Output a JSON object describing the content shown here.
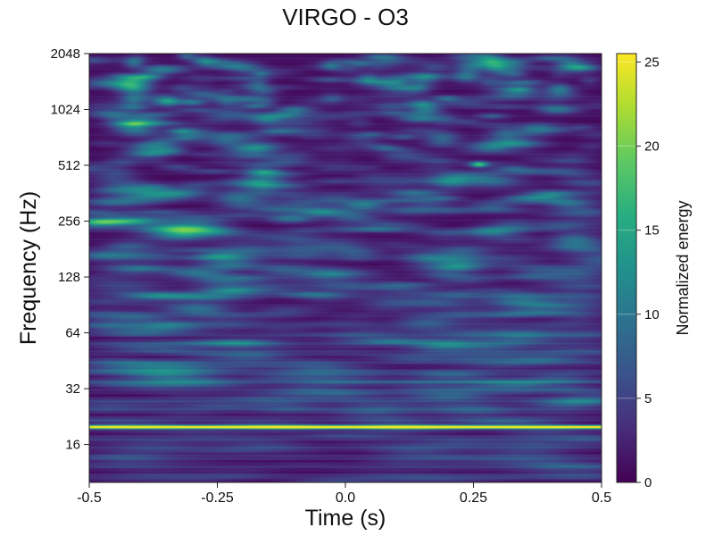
{
  "chart_data": {
    "type": "heatmap",
    "title": "VIRGO - O3",
    "xlabel": "Time (s)",
    "ylabel": "Frequency (Hz)",
    "x_ticks": [
      -0.5,
      -0.25,
      0.0,
      0.25,
      0.5
    ],
    "x_tick_labels": [
      "-0.5",
      "-0.25",
      "0.0",
      "0.25",
      "0.5"
    ],
    "y_scale": "log2",
    "y_ticks": [
      16,
      32,
      64,
      128,
      256,
      512,
      1024,
      2048
    ],
    "y_tick_labels": [
      "16",
      "32",
      "64",
      "128",
      "256",
      "512",
      "1024",
      "2048"
    ],
    "xlim": [
      -0.5,
      0.5
    ],
    "ylim": [
      10,
      2048
    ],
    "colormap": "viridis",
    "colorbar": {
      "label": "Normalized energy",
      "range": [
        0,
        25.5
      ],
      "ticks": [
        0,
        5,
        10,
        15,
        20,
        25
      ],
      "tick_labels": [
        "0",
        "5",
        "10",
        "15",
        "20",
        "25"
      ]
    },
    "features": [
      {
        "type": "band",
        "freq": 20,
        "energy": 25.5
      },
      {
        "type": "band",
        "freq": 35,
        "energy": 6
      },
      {
        "type": "blob",
        "time": 0.26,
        "freq": 520,
        "energy": 16
      },
      {
        "type": "blob",
        "time": -0.03,
        "freq": 110,
        "energy": 8
      },
      {
        "type": "blob",
        "time": -0.08,
        "freq": 160,
        "energy": 7
      }
    ],
    "grid": false,
    "colors": {
      "low": "#440154",
      "mid": "#21918c",
      "high": "#fde725"
    }
  }
}
